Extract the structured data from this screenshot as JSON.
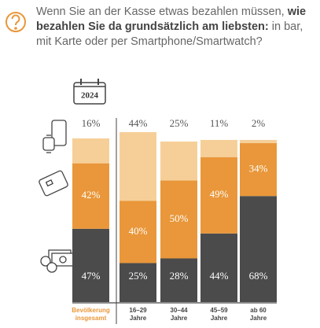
{
  "header": {
    "title_intro": "Wenn Sie an der Kasse etwas bezahlen müssen,",
    "title_emphasis": "wie bezahlen Sie da grundsätzlich am liebsten:",
    "title_rest": "in bar, mit Karte oder per Smartphone/Smartwatch?",
    "badge": "2024"
  },
  "chart_data": {
    "type": "stacked-bar",
    "categories": [
      "Bevölkerung\ninsgesamt",
      "16–29\nJahre",
      "30–44\nJahre",
      "45–59\nJahre",
      "ab 60\nJahre"
    ],
    "series": [
      {
        "color": "#4b4b4b",
        "values": [
          47,
          25,
          28,
          44,
          68
        ],
        "value_labels": [
          "47%",
          "25%",
          "28%",
          "44%",
          "68%"
        ]
      },
      {
        "color": "#e9973a",
        "values": [
          42,
          40,
          50,
          49,
          34
        ],
        "value_labels": [
          "42%",
          "40%",
          "50%",
          "49%",
          "34%"
        ]
      },
      {
        "color": "#f6cf98",
        "values": [
          16,
          44,
          25,
          11,
          2
        ],
        "value_labels": [
          "16%",
          "44%",
          "25%",
          "11%",
          "2%"
        ]
      }
    ]
  }
}
